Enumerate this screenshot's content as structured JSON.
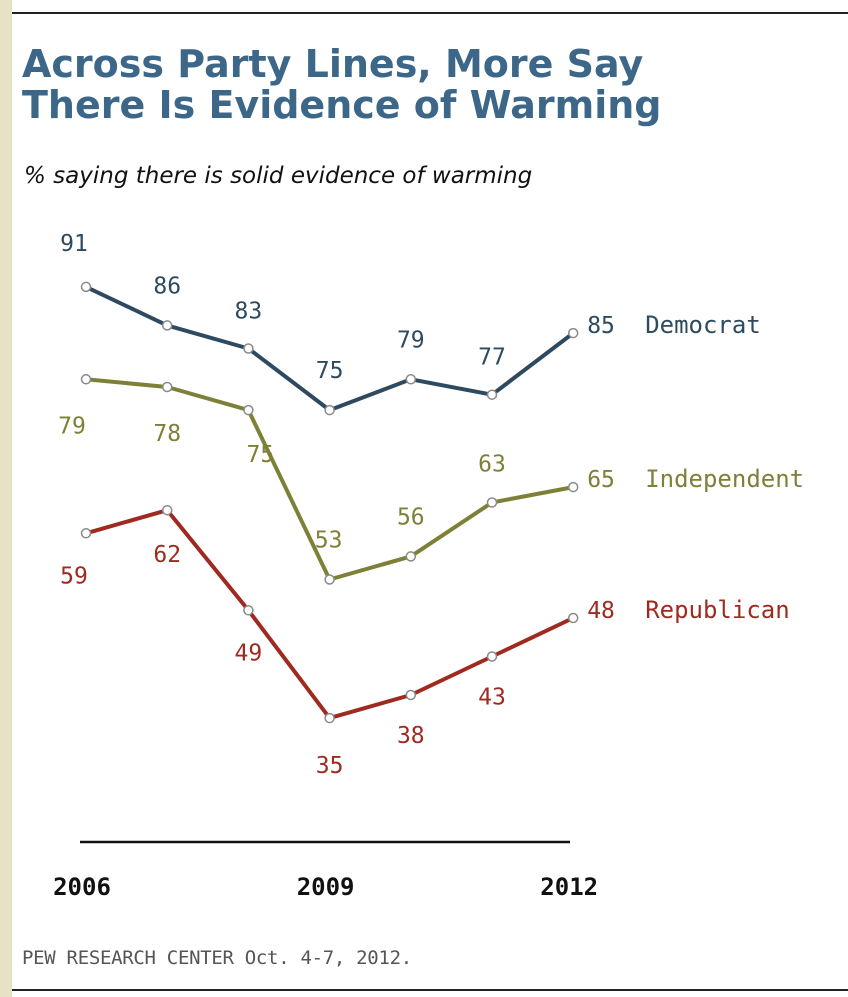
{
  "title_line1": "Across Party Lines, More Say",
  "title_line2": "There Is Evidence of Warming",
  "subtitle": "% saying there is solid evidence of warming",
  "source": "PEW RESEARCH CENTER Oct. 4-7, 2012.",
  "chart_data": {
    "type": "line",
    "x": [
      2006,
      2007,
      2008,
      2009,
      2010,
      2011,
      2012
    ],
    "x_tick_labels": [
      "2006",
      "2009",
      "2012"
    ],
    "x_tick_values": [
      2006,
      2009,
      2012
    ],
    "ylabel": "% saying there is solid evidence of warming",
    "grid": false,
    "legend": "direct labels at line ends",
    "series": [
      {
        "name": "Democrat",
        "values": [
          91,
          86,
          83,
          75,
          79,
          77,
          85
        ],
        "color": "#2E4A60"
      },
      {
        "name": "Independent",
        "values": [
          79,
          78,
          75,
          53,
          56,
          63,
          65
        ],
        "color": "#7F8038"
      },
      {
        "name": "Republican",
        "values": [
          59,
          62,
          49,
          35,
          38,
          43,
          48
        ],
        "color": "#9E2A20"
      }
    ]
  }
}
